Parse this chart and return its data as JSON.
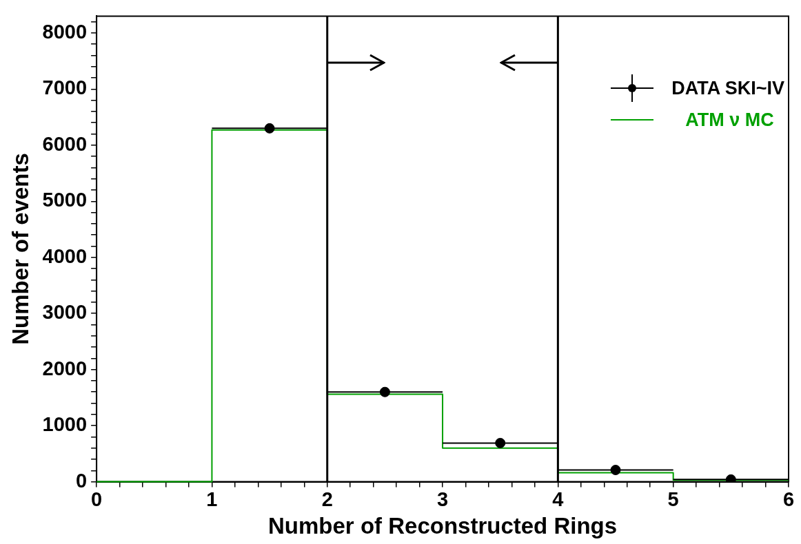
{
  "chart_data": {
    "type": "step",
    "xlabel": "Number of Reconstructed Rings",
    "ylabel": "Number of events",
    "xlim": [
      0,
      6
    ],
    "xticks": [
      0,
      {
        "value": 0.2,
        "label": null
      },
      {
        "value": 0.4,
        "label": null
      },
      {
        "value": 0.6,
        "label": null
      },
      {
        "value": 0.8,
        "label": null
      },
      1,
      {
        "value": 1.2,
        "label": null
      },
      {
        "value": 1.4,
        "label": null
      },
      {
        "value": 1.6,
        "label": null
      },
      {
        "value": 1.8,
        "label": null
      },
      2,
      {
        "value": 2.2,
        "label": null
      },
      {
        "value": 2.4,
        "label": null
      },
      {
        "value": 2.6,
        "label": null
      },
      {
        "value": 2.8,
        "label": null
      },
      3,
      {
        "value": 3.2,
        "label": null
      },
      {
        "value": 3.4,
        "label": null
      },
      {
        "value": 3.6,
        "label": null
      },
      {
        "value": 3.8,
        "label": null
      },
      4,
      {
        "value": 4.2,
        "label": null
      },
      {
        "value": 4.4,
        "label": null
      },
      {
        "value": 4.6,
        "label": null
      },
      {
        "value": 4.8,
        "label": null
      },
      5,
      {
        "value": 5.2,
        "label": null
      },
      {
        "value": 5.4,
        "label": null
      },
      {
        "value": 5.6,
        "label": null
      },
      {
        "value": 5.8,
        "label": null
      },
      6
    ],
    "ylim": [
      0,
      8300
    ],
    "yticks": [
      0,
      {
        "value": 200,
        "label": null
      },
      {
        "value": 400,
        "label": null
      },
      {
        "value": 600,
        "label": null
      },
      {
        "value": 800,
        "label": null
      },
      1000,
      {
        "value": 1200,
        "label": null
      },
      {
        "value": 1400,
        "label": null
      },
      {
        "value": 1600,
        "label": null
      },
      {
        "value": 1800,
        "label": null
      },
      2000,
      {
        "value": 2200,
        "label": null
      },
      {
        "value": 2400,
        "label": null
      },
      {
        "value": 2600,
        "label": null
      },
      {
        "value": 2800,
        "label": null
      },
      3000,
      {
        "value": 3200,
        "label": null
      },
      {
        "value": 3400,
        "label": null
      },
      {
        "value": 3600,
        "label": null
      },
      {
        "value": 3800,
        "label": null
      },
      4000,
      {
        "value": 4200,
        "label": null
      },
      {
        "value": 4400,
        "label": null
      },
      {
        "value": 4600,
        "label": null
      },
      {
        "value": 4800,
        "label": null
      },
      5000,
      {
        "value": 5200,
        "label": null
      },
      {
        "value": 5400,
        "label": null
      },
      {
        "value": 5600,
        "label": null
      },
      {
        "value": 5800,
        "label": null
      },
      6000,
      {
        "value": 6200,
        "label": null
      },
      {
        "value": 6400,
        "label": null
      },
      {
        "value": 6600,
        "label": null
      },
      {
        "value": 6800,
        "label": null
      },
      7000,
      {
        "value": 7200,
        "label": null
      },
      {
        "value": 7400,
        "label": null
      },
      {
        "value": 7600,
        "label": null
      },
      {
        "value": 7800,
        "label": null
      },
      8000,
      {
        "value": 8200,
        "label": null
      }
    ],
    "grid": false,
    "legend": "top right",
    "series": [
      {
        "name": "DATA SKI~IV",
        "type": "scatter",
        "color": "#000000",
        "marker": "circle",
        "x": [
          1.5,
          2.5,
          3.5,
          4.5,
          5.5
        ],
        "values": [
          6300,
          1600,
          690,
          210,
          40
        ],
        "xerrors": [
          0.5,
          0.5,
          0.5,
          0.5,
          0.5
        ]
      },
      {
        "name": "ATM ν MC",
        "type": "step",
        "color": "#00a000",
        "x": [
          0,
          1,
          2,
          3,
          4,
          5,
          6
        ],
        "values": [
          0,
          6270,
          1560,
          600,
          160,
          30,
          30
        ]
      }
    ],
    "ref_lines": [
      {
        "axis": "x",
        "value": 2,
        "color": "#000000"
      },
      {
        "axis": "x",
        "value": 4,
        "color": "#000000"
      }
    ]
  }
}
